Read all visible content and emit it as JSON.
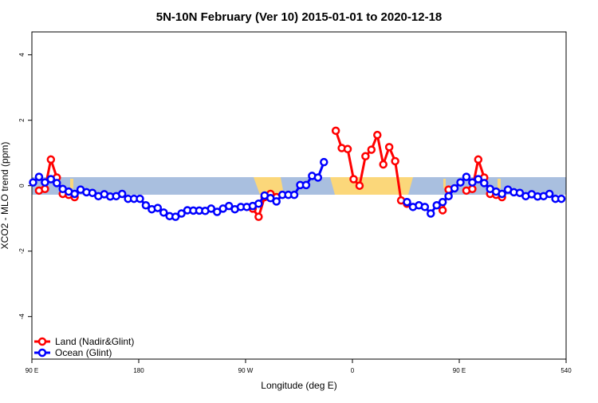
{
  "chart_data": {
    "type": "line",
    "title": "5N-10N February (Ver 10)   2015-01-01 to 2020-12-18",
    "x_label": "Longitude (deg E)",
    "y_label": "XCO2 - MLO trend (ppm)",
    "xlim": [
      90,
      540
    ],
    "ylim": [
      -5.3,
      4.7
    ],
    "xticks": [
      {
        "value": 90,
        "label": "90 E"
      },
      180,
      {
        "value": 270,
        "label": "90 W"
      },
      {
        "value": 360,
        "label": "0"
      },
      {
        "value": 450,
        "label": "90 E"
      },
      540
    ],
    "yticks": [
      -4,
      -2,
      0,
      2,
      4
    ],
    "legend": "bottom-left",
    "x": [
      91,
      96,
      101,
      106,
      111,
      116,
      121,
      126,
      131,
      136,
      141,
      146,
      151,
      156,
      161,
      166,
      171,
      176,
      181,
      186,
      191,
      196,
      201,
      206,
      211,
      216,
      221,
      226,
      231,
      236,
      241,
      246,
      251,
      256,
      261,
      266,
      271,
      276,
      281,
      286,
      291,
      296,
      301,
      306,
      311,
      316,
      321,
      326,
      331,
      336,
      341,
      346,
      351,
      356,
      361,
      366,
      371,
      376,
      381,
      386,
      391,
      396,
      401,
      406,
      411,
      416,
      421,
      426,
      431,
      436,
      441,
      446,
      451,
      456,
      461,
      466,
      471,
      476,
      481,
      486,
      491,
      496,
      501,
      506,
      511,
      516,
      521,
      526,
      531,
      536
    ],
    "series": [
      {
        "name": "Land (Nadir&Glint)",
        "color": "#ff0000",
        "values": [
          null,
          -0.15,
          -0.1,
          0.8,
          0.25,
          -0.25,
          -0.28,
          -0.35,
          null,
          null,
          null,
          null,
          null,
          null,
          null,
          null,
          null,
          null,
          null,
          null,
          null,
          null,
          null,
          null,
          null,
          null,
          null,
          null,
          null,
          null,
          null,
          null,
          null,
          null,
          null,
          null,
          null,
          -0.7,
          -0.95,
          -0.35,
          -0.25,
          -0.35,
          null,
          null,
          null,
          null,
          null,
          null,
          null,
          null,
          null,
          1.68,
          1.15,
          1.12,
          0.2,
          0.0,
          0.9,
          1.1,
          1.55,
          0.65,
          1.18,
          0.75,
          -0.45,
          -0.55,
          null,
          null,
          null,
          null,
          null,
          -0.75,
          -0.12,
          null,
          null,
          -0.15,
          -0.1,
          0.8,
          0.25,
          -0.25,
          -0.28,
          -0.35,
          null,
          null,
          null,
          null,
          null,
          null,
          null,
          null,
          null,
          null
        ]
      },
      {
        "name": "Ocean (Glint)",
        "color": "#0000ff",
        "values": [
          0.1,
          0.27,
          0.1,
          0.2,
          0.08,
          -0.1,
          -0.18,
          -0.25,
          -0.12,
          -0.2,
          -0.22,
          -0.32,
          -0.26,
          -0.33,
          -0.32,
          -0.25,
          -0.4,
          -0.4,
          -0.4,
          -0.6,
          -0.72,
          -0.68,
          -0.82,
          -0.93,
          -0.95,
          -0.85,
          -0.75,
          -0.76,
          -0.76,
          -0.77,
          -0.7,
          -0.8,
          -0.7,
          -0.62,
          -0.72,
          -0.65,
          -0.65,
          -0.62,
          -0.55,
          -0.3,
          -0.38,
          -0.48,
          -0.28,
          -0.28,
          -0.28,
          0.02,
          0.02,
          0.3,
          0.25,
          0.72,
          null,
          null,
          null,
          null,
          null,
          null,
          null,
          null,
          null,
          null,
          null,
          null,
          null,
          -0.5,
          -0.65,
          -0.6,
          -0.65,
          -0.85,
          -0.6,
          -0.5,
          -0.32,
          -0.08,
          0.1,
          0.27,
          0.1,
          0.2,
          0.08,
          -0.1,
          -0.18,
          -0.25,
          -0.12,
          -0.2,
          -0.22,
          -0.32,
          -0.26,
          -0.33,
          -0.32,
          -0.25,
          -0.4,
          -0.4
        ]
      }
    ]
  }
}
